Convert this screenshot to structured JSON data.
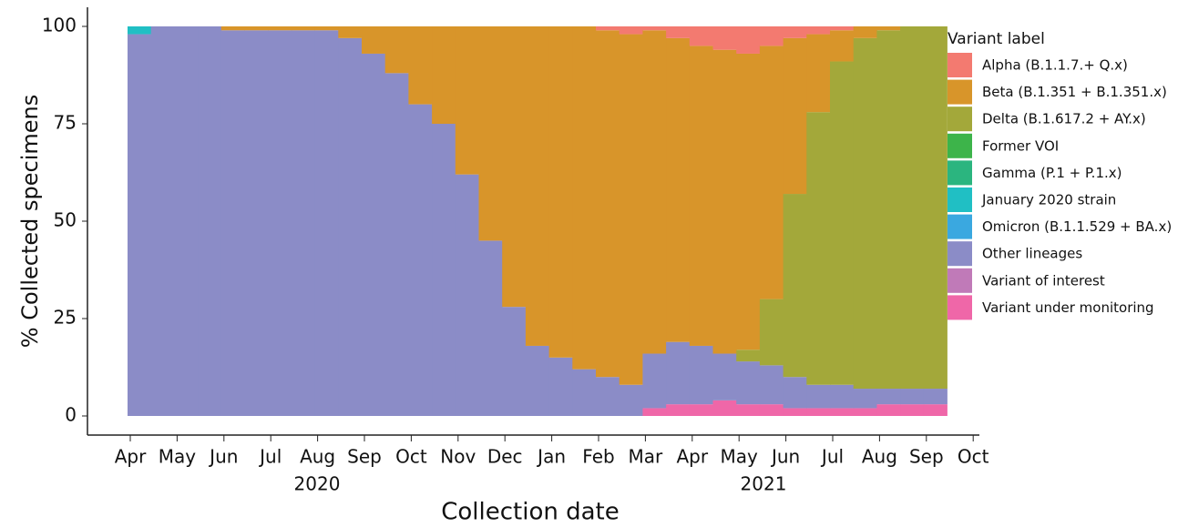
{
  "chart_data": {
    "type": "stacked_bar",
    "y_label": "% Collected specimens",
    "x_label": "Collection date",
    "x_group_labels": [
      "2020",
      "2021"
    ],
    "legend_title": "Variant label",
    "legend_position": "right",
    "categories": [
      "Apr",
      null,
      "May",
      null,
      "Jun",
      null,
      "Jul",
      null,
      "Aug",
      null,
      "Sep",
      null,
      "Oct",
      null,
      "Nov",
      null,
      "Dec",
      null,
      "Jan",
      null,
      "Feb",
      null,
      "Mar",
      null,
      "Apr",
      null,
      "May",
      null,
      "Jun",
      null,
      "Jul",
      null,
      "Aug",
      null,
      "Sep",
      null,
      "Oct",
      null
    ],
    "ylim": [
      0,
      100
    ],
    "yticks": [
      0,
      25,
      50,
      75,
      100
    ],
    "series": [
      {
        "name": "Alpha (B.1.1.7.+ Q.x)",
        "color": "#f37a70",
        "values": [
          0,
          0,
          0,
          0,
          0,
          0,
          0,
          0,
          0,
          0,
          0,
          0,
          0,
          0,
          0,
          0,
          0,
          0,
          0,
          0,
          1,
          2,
          1,
          3,
          5,
          6,
          7,
          5,
          3,
          2,
          1,
          0,
          0,
          0,
          0,
          null,
          null,
          null
        ]
      },
      {
        "name": "Beta (B.1.351 + B.1.351.x)",
        "color": "#d8952a",
        "values": [
          0,
          0,
          0,
          0,
          1,
          1,
          1,
          1,
          1,
          3,
          7,
          12,
          20,
          25,
          38,
          55,
          72,
          82,
          85,
          88,
          89,
          90,
          83,
          78,
          77,
          78,
          76,
          65,
          40,
          20,
          8,
          3,
          1,
          0,
          0,
          null,
          null,
          null
        ]
      },
      {
        "name": "Delta (B.1.617.2 + AY.x)",
        "color": "#a3a83a",
        "values": [
          0,
          0,
          0,
          0,
          0,
          0,
          0,
          0,
          0,
          0,
          0,
          0,
          0,
          0,
          0,
          0,
          0,
          0,
          0,
          0,
          0,
          0,
          0,
          0,
          0,
          0,
          3,
          17,
          47,
          70,
          83,
          90,
          92,
          93,
          93,
          null,
          null,
          null
        ]
      },
      {
        "name": "Former VOI",
        "color": "#3db44a",
        "values": [
          0,
          0,
          0,
          0,
          0,
          0,
          0,
          0,
          0,
          0,
          0,
          0,
          0,
          0,
          0,
          0,
          0,
          0,
          0,
          0,
          0,
          0,
          0,
          0,
          0,
          0,
          0,
          0,
          0,
          0,
          0,
          0,
          0,
          0,
          0,
          null,
          null,
          null
        ]
      },
      {
        "name": "Gamma (P.1 + P.1.x)",
        "color": "#2bb57f",
        "values": [
          0,
          0,
          0,
          0,
          0,
          0,
          0,
          0,
          0,
          0,
          0,
          0,
          0,
          0,
          0,
          0,
          0,
          0,
          0,
          0,
          0,
          0,
          0,
          0,
          0,
          0,
          0,
          0,
          0,
          0,
          0,
          0,
          0,
          0,
          0,
          null,
          null,
          null
        ]
      },
      {
        "name": "January 2020 strain",
        "color": "#20bfc4",
        "values": [
          2,
          0,
          0,
          0,
          0,
          0,
          0,
          0,
          0,
          0,
          0,
          0,
          0,
          0,
          0,
          0,
          0,
          0,
          0,
          0,
          0,
          0,
          0,
          0,
          0,
          0,
          0,
          0,
          0,
          0,
          0,
          0,
          0,
          0,
          0,
          null,
          null,
          null
        ]
      },
      {
        "name": "Omicron (B.1.1.529 + BA.x)",
        "color": "#3aa8e0",
        "values": [
          0,
          0,
          0,
          0,
          0,
          0,
          0,
          0,
          0,
          0,
          0,
          0,
          0,
          0,
          0,
          0,
          0,
          0,
          0,
          0,
          0,
          0,
          0,
          0,
          0,
          0,
          0,
          0,
          0,
          0,
          0,
          0,
          0,
          0,
          0,
          null,
          null,
          null
        ]
      },
      {
        "name": "Other lineages",
        "color": "#8b8cc7",
        "values": [
          98,
          100,
          100,
          100,
          99,
          99,
          99,
          99,
          99,
          97,
          93,
          88,
          80,
          75,
          62,
          45,
          28,
          18,
          15,
          12,
          10,
          8,
          14,
          16,
          15,
          12,
          11,
          10,
          8,
          6,
          6,
          5,
          4,
          4,
          4,
          null,
          null,
          null
        ]
      },
      {
        "name": "Variant of interest",
        "color": "#c07ab8",
        "values": [
          0,
          0,
          0,
          0,
          0,
          0,
          0,
          0,
          0,
          0,
          0,
          0,
          0,
          0,
          0,
          0,
          0,
          0,
          0,
          0,
          0,
          0,
          0,
          0,
          0,
          0,
          0,
          0,
          0,
          0,
          0,
          0,
          0,
          0,
          0,
          null,
          null,
          null
        ]
      },
      {
        "name": "Variant under monitoring",
        "color": "#ef67a8",
        "values": [
          0,
          0,
          0,
          0,
          0,
          0,
          0,
          0,
          0,
          0,
          0,
          0,
          0,
          0,
          0,
          0,
          0,
          0,
          0,
          0,
          0,
          0,
          2,
          3,
          3,
          4,
          3,
          3,
          2,
          2,
          2,
          2,
          3,
          3,
          3,
          null,
          null,
          null
        ]
      }
    ]
  }
}
